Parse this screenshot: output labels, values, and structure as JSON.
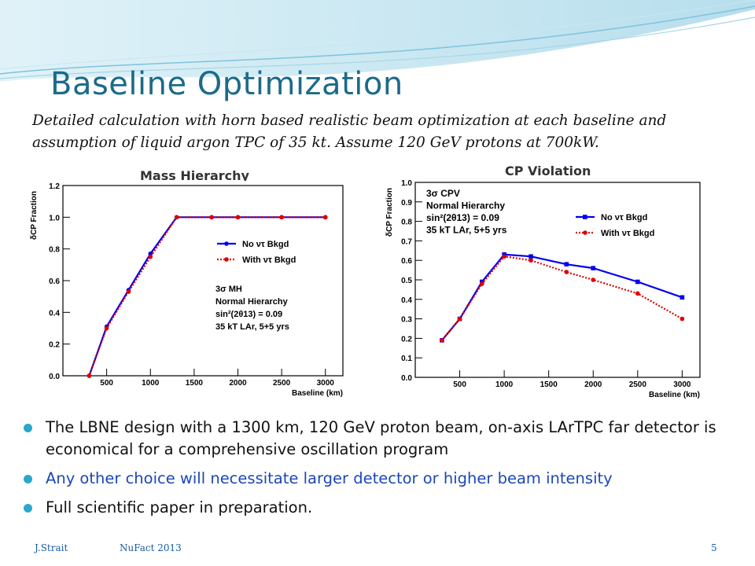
{
  "slide": {
    "title": "Baseline Optimization",
    "subtitle": "Detailed calculation with horn based realistic beam optimization at each baseline and assumption of liquid argon TPC of 35 kt.  Assume 120 GeV protons at 700kW.",
    "bullets": [
      {
        "text": "The LBNE design with a 1300 km, 120 GeV proton beam, on-axis LArTPC far detector is economical for a comprehensive oscillation program",
        "color": "#111111"
      },
      {
        "text": "Any other choice will necessitate larger detector or higher beam intensity",
        "color": "#1b47b8"
      },
      {
        "text": "Full scientific paper in preparation.",
        "color": "#111111"
      }
    ],
    "footer": {
      "author": "J.Strait",
      "event": "NuFact 2013",
      "page": "5"
    },
    "colors": {
      "title": "#1b6b89",
      "bullet": "#2aa8c9",
      "series_no": "#0000ee",
      "series_with": "#dd0000"
    }
  },
  "chart_data": [
    {
      "type": "line",
      "title": "Mass Hierarchy",
      "xlabel": "Baseline (km)",
      "ylabel": "δCP Fraction",
      "xlim": [
        0,
        3200
      ],
      "ylim": [
        0,
        1.2
      ],
      "xticks": [
        500,
        1000,
        1500,
        2000,
        2500,
        3000
      ],
      "yticks": [
        0.0,
        0.2,
        0.4,
        0.6,
        0.8,
        1.0,
        1.2
      ],
      "legend_position": "right-middle",
      "annotation": [
        "3σ MH",
        "Normal Hierarchy",
        "sin²(2θ13) = 0.09",
        "35 kT LAr, 5+5 yrs"
      ],
      "series": [
        {
          "name": "No ντ Bkgd",
          "color": "#0000ee",
          "style": "solid",
          "marker": "circle",
          "x": [
            300,
            500,
            750,
            1000,
            1300,
            1700,
            2000,
            2500,
            3000
          ],
          "y": [
            0.0,
            0.31,
            0.54,
            0.77,
            1.0,
            1.0,
            1.0,
            1.0,
            1.0
          ]
        },
        {
          "name": "With ντ Bkgd",
          "color": "#dd0000",
          "style": "dotted",
          "marker": "circle",
          "x": [
            300,
            500,
            750,
            1000,
            1300,
            1700,
            2000,
            2500,
            3000
          ],
          "y": [
            0.0,
            0.3,
            0.53,
            0.75,
            1.0,
            1.0,
            1.0,
            1.0,
            1.0
          ]
        }
      ]
    },
    {
      "type": "line",
      "title": "CP Violation",
      "xlabel": "Baseline (km)",
      "ylabel": "δCP Fraction",
      "xlim": [
        0,
        3200
      ],
      "ylim": [
        0,
        1.0
      ],
      "xticks": [
        500,
        1000,
        1500,
        2000,
        2500,
        3000
      ],
      "yticks": [
        0.0,
        0.1,
        0.2,
        0.3,
        0.4,
        0.5,
        0.6,
        0.7,
        0.8,
        0.9,
        1.0
      ],
      "legend_position": "top-right",
      "annotation": [
        "3σ CPV",
        "Normal Hierarchy",
        "sin²(2θ13) = 0.09",
        "35 kT LAr, 5+5 yrs"
      ],
      "series": [
        {
          "name": "No ντ Bkgd",
          "color": "#0000ee",
          "style": "solid",
          "marker": "square",
          "x": [
            300,
            500,
            750,
            1000,
            1300,
            1700,
            2000,
            2500,
            3000
          ],
          "y": [
            0.19,
            0.3,
            0.49,
            0.63,
            0.62,
            0.58,
            0.56,
            0.49,
            0.41
          ]
        },
        {
          "name": "With ντ Bkgd",
          "color": "#dd0000",
          "style": "dotted",
          "marker": "circle",
          "x": [
            300,
            500,
            750,
            1000,
            1300,
            1700,
            2000,
            2500,
            3000
          ],
          "y": [
            0.19,
            0.3,
            0.48,
            0.62,
            0.6,
            0.54,
            0.5,
            0.43,
            0.3
          ]
        }
      ]
    }
  ]
}
